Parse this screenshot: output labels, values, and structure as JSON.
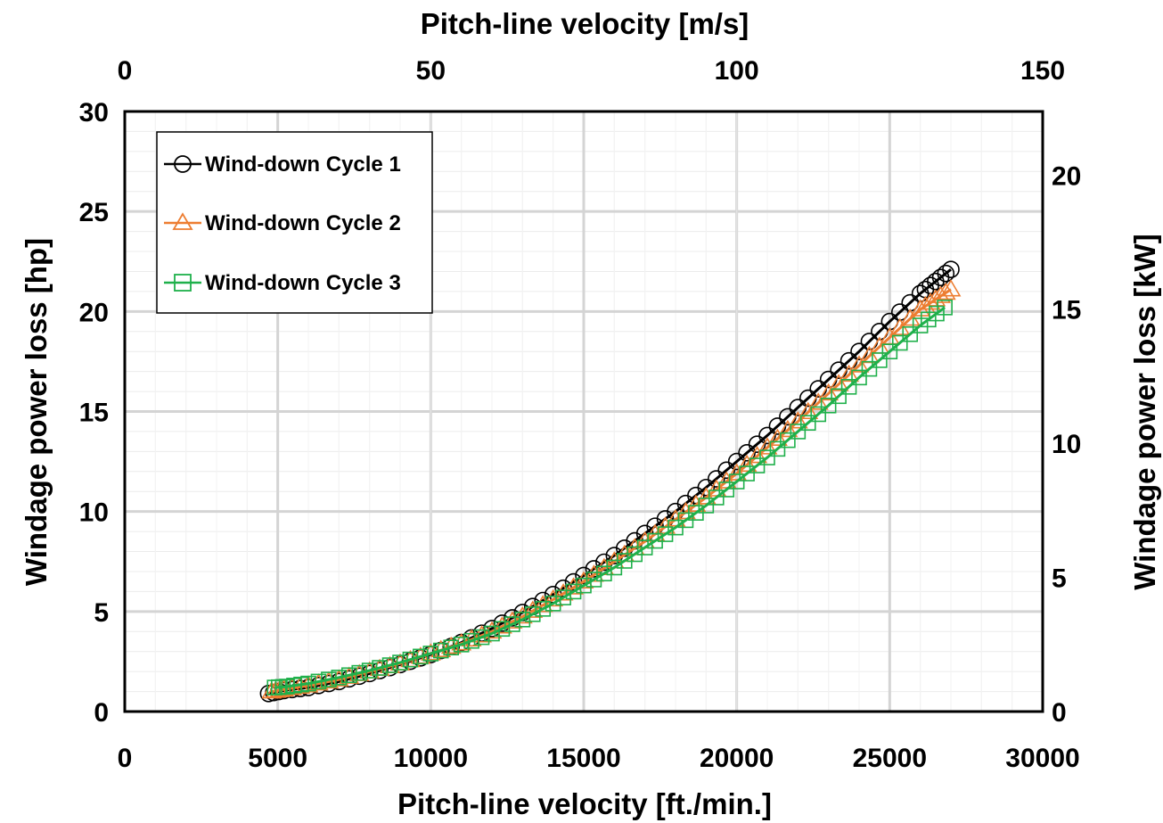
{
  "chart_data": {
    "type": "scatter",
    "xlabel": "Pitch-line velocity [ft./min.]",
    "ylabel": "Windage power loss  [hp]",
    "x2label": "Pitch-line velocity [m/s]",
    "y2label": "Windage power loss [kW]",
    "xlim": [
      0,
      30000
    ],
    "ylim": [
      0,
      30
    ],
    "x2lim": [
      0,
      150
    ],
    "y2lim": [
      0,
      22.371
    ],
    "xticks": [
      0,
      5000,
      10000,
      15000,
      20000,
      25000,
      30000
    ],
    "yticks": [
      0,
      5,
      10,
      15,
      20,
      25,
      30
    ],
    "x2ticks": [
      0,
      50,
      100,
      150
    ],
    "y2ticks": [
      0,
      5,
      10,
      15,
      20
    ],
    "xtick_labels": [
      "0",
      "5000",
      "10000",
      "15000",
      "20000",
      "25000",
      "30000"
    ],
    "ytick_labels": [
      "0",
      "5",
      "10",
      "15",
      "20",
      "25",
      "30"
    ],
    "x2tick_labels": [
      "0",
      "50",
      "100",
      "150"
    ],
    "y2tick_labels": [
      "0",
      "5",
      "10",
      "15",
      "20"
    ],
    "grid": true,
    "legend_position": "top-left",
    "series": [
      {
        "name": "Wind-down Cycle 1",
        "marker": "circle",
        "color": "#000000",
        "x": [
          4700,
          5200,
          6000,
          7000,
          8000,
          9000,
          10000,
          11000,
          12000,
          13000,
          14000,
          15000,
          16000,
          17000,
          18000,
          19000,
          20000,
          21000,
          22000,
          23000,
          24000,
          25000,
          26000,
          26500,
          27000
        ],
        "y": [
          0.9,
          1.05,
          1.2,
          1.5,
          1.9,
          2.35,
          2.85,
          3.45,
          4.15,
          4.95,
          5.85,
          6.8,
          7.8,
          8.9,
          10.0,
          11.2,
          12.5,
          13.8,
          15.2,
          16.6,
          18.0,
          19.5,
          20.9,
          21.5,
          22.1
        ]
      },
      {
        "name": "Wind-down Cycle 2",
        "marker": "triangle",
        "color": "#ED7D31",
        "x": [
          4800,
          5200,
          6000,
          7000,
          8000,
          9000,
          10000,
          11000,
          12000,
          13000,
          14000,
          15000,
          16000,
          17000,
          18000,
          19000,
          20000,
          21000,
          22000,
          23000,
          24000,
          25000,
          26000,
          26500,
          27000
        ],
        "y": [
          1.0,
          1.1,
          1.3,
          1.6,
          2.0,
          2.4,
          2.9,
          3.4,
          4.0,
          4.75,
          5.6,
          6.5,
          7.5,
          8.5,
          9.6,
          10.7,
          11.9,
          13.2,
          14.5,
          15.9,
          17.3,
          18.7,
          20.1,
          20.6,
          21.1
        ]
      },
      {
        "name": "Wind-down Cycle 3",
        "marker": "square",
        "color": "#1FB04B",
        "x": [
          4900,
          5300,
          6000,
          7000,
          8000,
          9000,
          10000,
          11000,
          12000,
          13000,
          14000,
          15000,
          16000,
          17000,
          18000,
          19000,
          20000,
          21000,
          22000,
          23000,
          24000,
          25000,
          26000,
          26800
        ],
        "y": [
          1.2,
          1.25,
          1.4,
          1.7,
          2.05,
          2.45,
          2.9,
          3.35,
          3.9,
          4.6,
          5.4,
          6.3,
          7.2,
          8.2,
          9.2,
          10.3,
          11.5,
          12.7,
          14.0,
          15.3,
          16.7,
          18.0,
          19.3,
          20.2
        ]
      }
    ]
  }
}
